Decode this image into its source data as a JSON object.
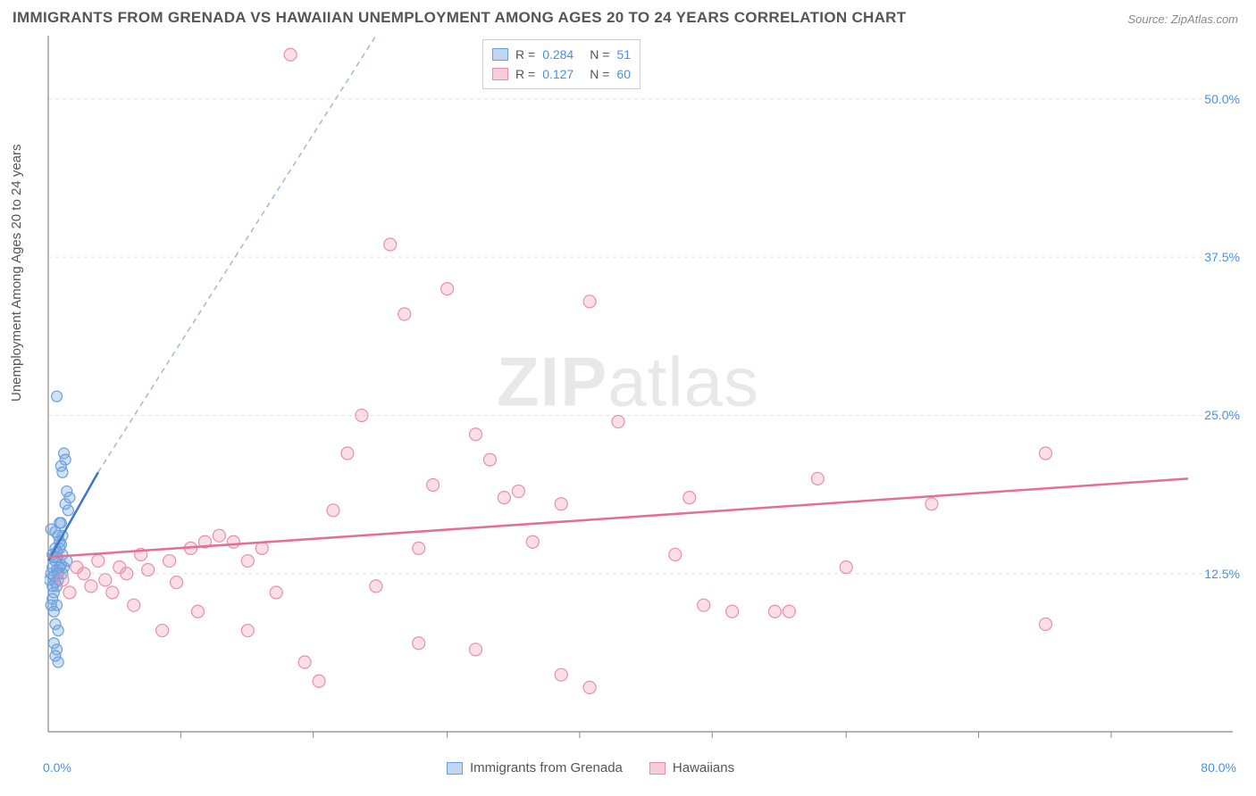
{
  "title": "IMMIGRANTS FROM GRENADA VS HAWAIIAN UNEMPLOYMENT AMONG AGES 20 TO 24 YEARS CORRELATION CHART",
  "source": "Source: ZipAtlas.com",
  "ylabel": "Unemployment Among Ages 20 to 24 years",
  "watermark_zip": "ZIP",
  "watermark_atlas": "atlas",
  "chart": {
    "type": "scatter",
    "background": "#ffffff",
    "grid_color": "#e3e3e3",
    "axis_color": "#888888",
    "xlim": [
      0,
      80
    ],
    "ylim": [
      0,
      55
    ],
    "xtick_labels": {
      "min": "0.0%",
      "max": "80.0%"
    },
    "ytick_positions": [
      12.5,
      25.0,
      37.5,
      50.0
    ],
    "ytick_labels": [
      "12.5%",
      "25.0%",
      "37.5%",
      "50.0%"
    ],
    "xtick_positions": [
      9.3,
      18.6,
      28.0,
      37.3,
      46.6,
      56.0,
      65.3,
      74.6
    ],
    "series": [
      {
        "name": "Immigrants from Grenada",
        "color_fill": "rgba(120,170,230,0.35)",
        "color_stroke": "#6a9fd8",
        "swatch_fill": "#bfd7f2",
        "swatch_border": "#6a9fd8",
        "marker_r": 6,
        "R": "0.284",
        "N": "51",
        "trend": {
          "x1": 0,
          "y1": 13.5,
          "x2": 3.5,
          "y2": 20.5,
          "color": "#3b77c2",
          "width": 2.5
        },
        "trend_ext": {
          "x1": 3.5,
          "y1": 20.5,
          "x2": 23,
          "y2": 55,
          "color": "#9bb9e0",
          "dash": "6,5"
        },
        "points": [
          [
            0.1,
            12.0
          ],
          [
            0.2,
            12.5
          ],
          [
            0.3,
            13.0
          ],
          [
            0.4,
            11.0
          ],
          [
            0.5,
            13.5
          ],
          [
            0.3,
            14.0
          ],
          [
            0.6,
            12.8
          ],
          [
            0.5,
            14.5
          ],
          [
            0.8,
            15.0
          ],
          [
            0.2,
            16.0
          ],
          [
            0.9,
            13.2
          ],
          [
            1.0,
            14.0
          ],
          [
            0.7,
            12.0
          ],
          [
            1.1,
            13.0
          ],
          [
            0.4,
            12.3
          ],
          [
            0.6,
            11.5
          ],
          [
            1.2,
            18.0
          ],
          [
            1.3,
            19.0
          ],
          [
            1.4,
            17.5
          ],
          [
            1.5,
            18.5
          ],
          [
            0.9,
            21.0
          ],
          [
            1.1,
            22.0
          ],
          [
            1.0,
            20.5
          ],
          [
            1.2,
            21.5
          ],
          [
            0.8,
            14.5
          ],
          [
            0.6,
            13.8
          ],
          [
            0.5,
            11.8
          ],
          [
            0.7,
            15.5
          ],
          [
            0.3,
            10.5
          ],
          [
            0.4,
            9.5
          ],
          [
            0.6,
            10.0
          ],
          [
            0.5,
            8.5
          ],
          [
            0.7,
            8.0
          ],
          [
            0.4,
            7.0
          ],
          [
            0.6,
            6.5
          ],
          [
            0.5,
            6.0
          ],
          [
            0.7,
            5.5
          ],
          [
            1.0,
            12.5
          ],
          [
            1.3,
            13.5
          ],
          [
            0.8,
            16.5
          ],
          [
            1.0,
            15.5
          ],
          [
            0.9,
            14.8
          ],
          [
            0.3,
            11.5
          ],
          [
            0.2,
            10.0
          ],
          [
            0.4,
            13.8
          ],
          [
            0.6,
            14.2
          ],
          [
            0.8,
            13.0
          ],
          [
            0.7,
            12.5
          ],
          [
            0.5,
            15.8
          ],
          [
            0.9,
            16.5
          ],
          [
            0.6,
            26.5
          ]
        ]
      },
      {
        "name": "Hawaiians",
        "color_fill": "rgba(240,150,175,0.30)",
        "color_stroke": "#e890a8",
        "swatch_fill": "#f7cdd8",
        "swatch_border": "#e890a8",
        "marker_r": 7,
        "R": "0.127",
        "N": "60",
        "trend": {
          "x1": 0,
          "y1": 13.8,
          "x2": 80,
          "y2": 20.0,
          "color": "#e56f92",
          "width": 2.5
        },
        "points": [
          [
            1.0,
            12.0
          ],
          [
            1.5,
            11.0
          ],
          [
            2.0,
            13.0
          ],
          [
            2.5,
            12.5
          ],
          [
            3.0,
            11.5
          ],
          [
            3.5,
            13.5
          ],
          [
            4.0,
            12.0
          ],
          [
            4.5,
            11.0
          ],
          [
            5.0,
            13.0
          ],
          [
            5.5,
            12.5
          ],
          [
            6.0,
            10.0
          ],
          [
            6.5,
            14.0
          ],
          [
            7.0,
            12.8
          ],
          [
            8.0,
            8.0
          ],
          [
            8.5,
            13.5
          ],
          [
            9.0,
            11.8
          ],
          [
            10.0,
            14.5
          ],
          [
            10.5,
            9.5
          ],
          [
            11.0,
            15.0
          ],
          [
            12.0,
            15.5
          ],
          [
            13.0,
            15.0
          ],
          [
            14.0,
            13.5
          ],
          [
            15.0,
            14.5
          ],
          [
            16.0,
            11.0
          ],
          [
            17.0,
            53.5
          ],
          [
            18.0,
            5.5
          ],
          [
            19.0,
            4.0
          ],
          [
            20.0,
            17.5
          ],
          [
            21.0,
            22.0
          ],
          [
            22.0,
            25.0
          ],
          [
            23.0,
            11.5
          ],
          [
            24.0,
            38.5
          ],
          [
            25.0,
            33.0
          ],
          [
            26.0,
            14.5
          ],
          [
            27.0,
            19.5
          ],
          [
            28.0,
            35.0
          ],
          [
            30.0,
            23.5
          ],
          [
            30.0,
            6.5
          ],
          [
            31.0,
            21.5
          ],
          [
            32.0,
            18.5
          ],
          [
            33.0,
            19.0
          ],
          [
            34.0,
            15.0
          ],
          [
            36.0,
            18.0
          ],
          [
            36.0,
            4.5
          ],
          [
            38.0,
            34.0
          ],
          [
            38.0,
            3.5
          ],
          [
            40.0,
            24.5
          ],
          [
            45.0,
            18.5
          ],
          [
            46.0,
            10.0
          ],
          [
            48.0,
            9.5
          ],
          [
            51.0,
            9.5
          ],
          [
            52.0,
            9.5
          ],
          [
            54.0,
            20.0
          ],
          [
            62.0,
            18.0
          ],
          [
            70.0,
            8.5
          ],
          [
            70.0,
            22.0
          ],
          [
            56.0,
            13.0
          ],
          [
            44.0,
            14.0
          ],
          [
            14.0,
            8.0
          ],
          [
            26.0,
            7.0
          ]
        ]
      }
    ],
    "legend_bottom": [
      {
        "label": "Immigrants from Grenada",
        "series": 0
      },
      {
        "label": "Hawaiians",
        "series": 1
      }
    ]
  }
}
